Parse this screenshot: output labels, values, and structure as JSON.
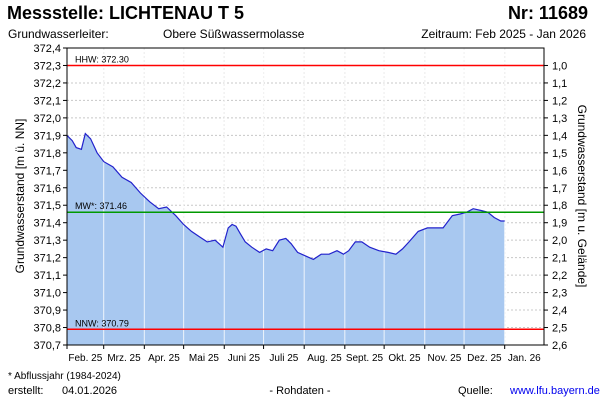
{
  "header": {
    "title": "Messstelle: LICHTENAU T 5",
    "number": "Nr: 11689",
    "aquifer_label": "Grundwasserleiter:",
    "aquifer_value": "Obere Süßwassermolasse",
    "period": "Zeitraum: Feb 2025 - Jan 2026"
  },
  "footer": {
    "footnote": "* Abflussjahr (1984-2024)",
    "created_label": "erstellt:",
    "created_value": "04.01.2026",
    "raw_data": "- Rohdaten -",
    "source_label": "Quelle:",
    "source_url": "www.lfu.bayern.de"
  },
  "chart_data": {
    "type": "area",
    "ylabel": "Grundwasserstand [m ü. NN]",
    "y2label": "Grundwasserstand [m u. Gelände]",
    "ylim": [
      370.7,
      372.4
    ],
    "yticks": [
      "372,4",
      "372,3",
      "372,2",
      "372,1",
      "372,0",
      "371,9",
      "371,8",
      "371,7",
      "371,6",
      "371,5",
      "371,4",
      "371,3",
      "371,2",
      "371,1",
      "371,0",
      "370,9",
      "370,8",
      "370,7"
    ],
    "y2ticks": [
      "1,0",
      "1,1",
      "1,2",
      "1,3",
      "1,4",
      "1,5",
      "1,6",
      "1,7",
      "1,8",
      "1,9",
      "2,0",
      "2,1",
      "2,2",
      "2,3",
      "2,4",
      "2,5",
      "2,6"
    ],
    "x_tick_labels": [
      "Feb. 25",
      "Mrz. 25",
      "Apr. 25",
      "Mai 25",
      "Juni 25",
      "Juli 25",
      "Aug. 25",
      "Sept. 25",
      "Okt. 25",
      "Nov. 25",
      "Dez. 25",
      "Jan. 26"
    ],
    "grid": true,
    "reference_lines": [
      {
        "label": "HHW: 372.30",
        "value": 372.3,
        "color": "#ff0000"
      },
      {
        "label": "MW*: 371.46",
        "value": 371.46,
        "color": "#009900"
      },
      {
        "label": "NNW: 370.79",
        "value": 370.79,
        "color": "#ff0000"
      }
    ],
    "series": [
      {
        "color": "#2222cc",
        "fill": "#a8c8f0",
        "x": [
          "2025-02-01",
          "2025-02-05",
          "2025-02-08",
          "2025-02-12",
          "2025-02-15",
          "2025-02-19",
          "2025-02-24",
          "2025-03-01",
          "2025-03-08",
          "2025-03-15",
          "2025-03-22",
          "2025-03-29",
          "2025-04-05",
          "2025-04-12",
          "2025-04-18",
          "2025-04-25",
          "2025-05-01",
          "2025-05-07",
          "2025-05-13",
          "2025-05-19",
          "2025-05-25",
          "2025-05-31",
          "2025-06-04",
          "2025-06-07",
          "2025-06-10",
          "2025-06-13",
          "2025-06-17",
          "2025-06-22",
          "2025-06-28",
          "2025-07-03",
          "2025-07-08",
          "2025-07-13",
          "2025-07-18",
          "2025-07-22",
          "2025-07-27",
          "2025-08-02",
          "2025-08-08",
          "2025-08-14",
          "2025-08-20",
          "2025-08-26",
          "2025-08-31",
          "2025-09-04",
          "2025-09-09",
          "2025-09-14",
          "2025-09-20",
          "2025-09-27",
          "2025-10-04",
          "2025-10-10",
          "2025-10-15",
          "2025-10-20",
          "2025-10-27",
          "2025-11-03",
          "2025-11-08",
          "2025-11-15",
          "2025-11-22",
          "2025-11-28",
          "2025-12-03",
          "2025-12-08",
          "2025-12-14",
          "2025-12-19",
          "2025-12-24",
          "2025-12-29",
          "2026-01-01"
        ],
        "y": [
          371.9,
          371.87,
          371.83,
          371.82,
          371.91,
          371.88,
          371.8,
          371.75,
          371.72,
          371.66,
          371.63,
          371.57,
          371.52,
          371.48,
          371.49,
          371.44,
          371.39,
          371.35,
          371.32,
          371.29,
          371.3,
          371.26,
          371.37,
          371.39,
          371.38,
          371.34,
          371.29,
          371.26,
          371.23,
          371.25,
          371.24,
          371.3,
          371.31,
          371.28,
          371.23,
          371.21,
          371.19,
          371.22,
          371.22,
          371.24,
          371.22,
          371.24,
          371.29,
          371.29,
          371.26,
          371.24,
          371.23,
          371.22,
          371.25,
          371.29,
          371.35,
          371.37,
          371.37,
          371.37,
          371.44,
          371.45,
          371.46,
          371.48,
          371.47,
          371.46,
          371.43,
          371.41,
          371.41
        ]
      }
    ]
  }
}
